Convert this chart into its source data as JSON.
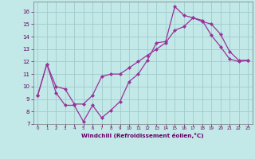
{
  "title": "",
  "xlabel": "Windchill (Refroidissement éolien,°C)",
  "xlim": [
    -0.5,
    23.5
  ],
  "ylim": [
    7,
    16.8
  ],
  "yticks": [
    7,
    8,
    9,
    10,
    11,
    12,
    13,
    14,
    15,
    16
  ],
  "xticks": [
    0,
    1,
    2,
    3,
    4,
    5,
    6,
    7,
    8,
    9,
    10,
    11,
    12,
    13,
    14,
    15,
    16,
    17,
    18,
    19,
    20,
    21,
    22,
    23
  ],
  "background_color": "#c2e8e8",
  "grid_color": "#a0cccc",
  "line_color": "#993399",
  "line1_x": [
    0,
    1,
    2,
    3,
    4,
    5,
    6,
    7,
    8,
    9,
    10,
    11,
    12,
    13,
    14,
    15,
    16,
    17,
    18,
    19,
    20,
    21,
    22,
    23
  ],
  "line1_y": [
    9.3,
    11.8,
    9.5,
    8.5,
    8.5,
    7.2,
    8.5,
    7.5,
    8.1,
    8.8,
    10.4,
    11.0,
    12.1,
    13.5,
    13.6,
    16.4,
    15.7,
    15.5,
    15.3,
    14.1,
    13.2,
    12.2,
    12.0,
    12.1
  ],
  "line2_x": [
    0,
    1,
    2,
    3,
    4,
    5,
    6,
    7,
    8,
    9,
    10,
    11,
    12,
    13,
    14,
    15,
    16,
    17,
    18,
    19,
    20,
    21,
    22,
    23
  ],
  "line2_y": [
    9.3,
    11.8,
    10.0,
    9.8,
    8.6,
    8.6,
    9.3,
    10.8,
    11.0,
    11.0,
    11.5,
    12.0,
    12.5,
    13.0,
    13.5,
    14.5,
    14.8,
    15.5,
    15.2,
    15.0,
    14.2,
    12.8,
    12.1,
    12.1
  ]
}
